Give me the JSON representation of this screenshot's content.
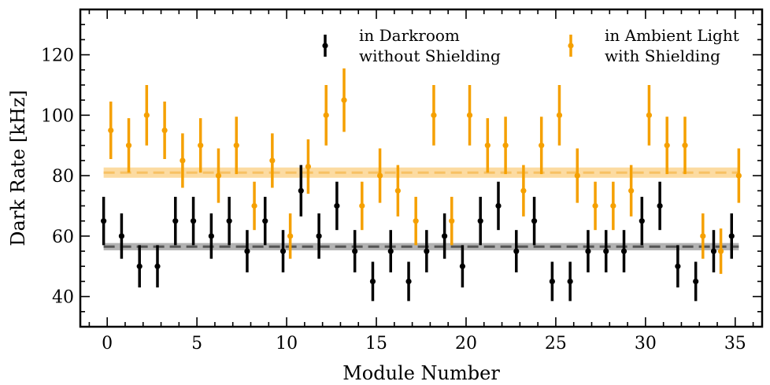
{
  "chart_data": {
    "type": "scatter",
    "title": "",
    "xlabel": "Module Number",
    "ylabel": "Dark Rate [kHz]",
    "xlim": [
      -1.5,
      36.5
    ],
    "ylim": [
      30,
      135
    ],
    "x_ticks": [
      0,
      5,
      10,
      15,
      20,
      25,
      30,
      35
    ],
    "y_ticks": [
      40,
      60,
      80,
      100,
      120
    ],
    "x_tick_labels": [
      "0",
      "5",
      "10",
      "15",
      "20",
      "25",
      "30",
      "35"
    ],
    "y_tick_labels": [
      "40",
      "60",
      "80",
      "100",
      "120"
    ],
    "grid": false,
    "legend_position": "top-right",
    "series": [
      {
        "name": "in Darkroom without Shielding",
        "legend_lines": [
          "in Darkroom",
          "without Shielding"
        ],
        "color": "#000000",
        "x_offset": -0.2,
        "mean": 56.5,
        "mean_band": [
          55.3,
          57.7
        ],
        "values": [
          65,
          60,
          50,
          50,
          65,
          65,
          60,
          65,
          55,
          65,
          55,
          75,
          60,
          70,
          55,
          45,
          55,
          45,
          55,
          60,
          50,
          65,
          70,
          55,
          65,
          45,
          45,
          55,
          55,
          55,
          65,
          70,
          50,
          45,
          55,
          60
        ],
        "errors": [
          8,
          7.5,
          7,
          7,
          8,
          8,
          7.5,
          8,
          7,
          8,
          7,
          8.5,
          7.5,
          8,
          7,
          6.5,
          7,
          6.5,
          7,
          7.5,
          7,
          8,
          8,
          7,
          8,
          6.5,
          6.5,
          7,
          7,
          7,
          8,
          8,
          7,
          6.5,
          7,
          7.5
        ]
      },
      {
        "name": "in Ambient Light with Shielding",
        "legend_lines": [
          "in Ambient Light",
          "with Shielding"
        ],
        "color": "#f5a000",
        "x_offset": 0.2,
        "mean": 81,
        "mean_band": [
          79.3,
          82.7
        ],
        "values": [
          95,
          90,
          100,
          95,
          85,
          90,
          80,
          90,
          70,
          85,
          60,
          83,
          100,
          105,
          70,
          80,
          75,
          65,
          100,
          65,
          100,
          90,
          90,
          75,
          90,
          100,
          80,
          70,
          70,
          75,
          100,
          90,
          90,
          60,
          55,
          80
        ],
        "errors": [
          9.5,
          9,
          10,
          9.5,
          9,
          9,
          9,
          9.5,
          8,
          9,
          7.5,
          9,
          10,
          10.5,
          8,
          9,
          8.5,
          8,
          10,
          8,
          10,
          9,
          9.5,
          8.5,
          9.5,
          10,
          9,
          8,
          8,
          8.5,
          10,
          9.5,
          9.5,
          7.5,
          7.5,
          9
        ]
      }
    ]
  }
}
